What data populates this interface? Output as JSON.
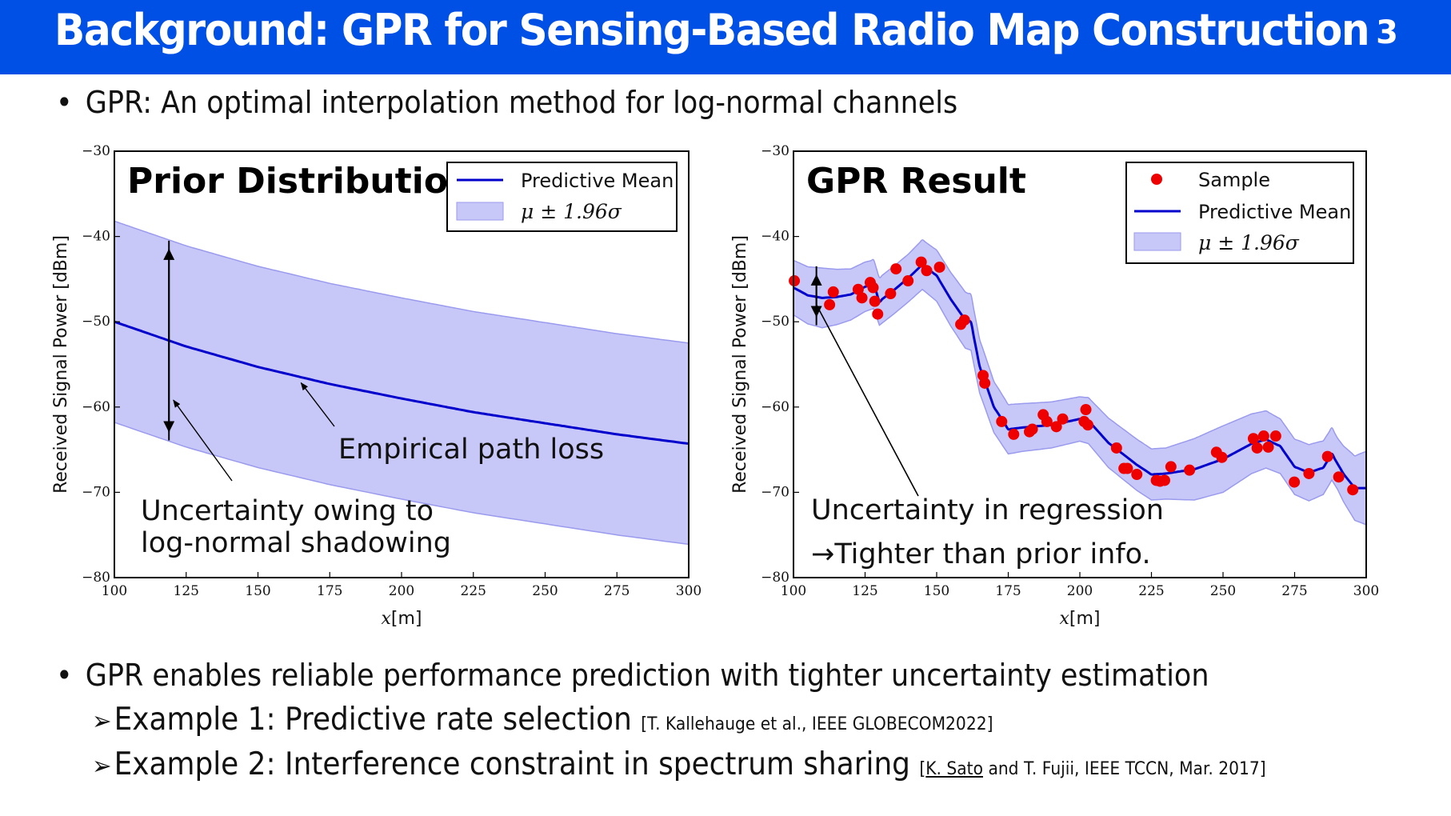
{
  "header": {
    "title": "Background: GPR for Sensing-Based Radio Map Construction",
    "page_number": "3",
    "background_color": "#0050E6"
  },
  "bullets": {
    "top": "GPR: An optimal interpolation method for log-normal channels",
    "bottom": "GPR enables reliable performance prediction with tighter uncertainty estimation",
    "bullet_glyph": "•",
    "sub_glyph": "➢",
    "examples": [
      {
        "text": "Example 1: Predictive rate selection",
        "ref_pre": "[T. Kallehauge et al., IEEE GLOBECOM2022]",
        "ref_underlined": "",
        "ref_post": ""
      },
      {
        "text": "Example 2: Interference constraint in spectrum sharing",
        "ref_pre": "[",
        "ref_underlined": "K. Sato",
        "ref_post": " and T. Fujii, IEEE TCCN, Mar. 2017]"
      }
    ]
  },
  "chart_data": [
    {
      "type": "area",
      "title": "Prior Distribution",
      "xlabel": "x[m]",
      "ylabel": "Received Signal Power [dBm]",
      "xlim": [
        100,
        300
      ],
      "ylim": [
        -80,
        -30
      ],
      "xticks": [
        100,
        125,
        150,
        175,
        200,
        225,
        250,
        275,
        300
      ],
      "yticks": [
        -80,
        -70,
        -60,
        -50,
        -40,
        -30
      ],
      "grid": false,
      "legend": {
        "position": "top-right",
        "entries": [
          "Predictive Mean",
          "μ ± 1.96σ"
        ]
      },
      "colors": {
        "mean": "#0000CC",
        "band": "#C8C8F8",
        "band_edge": "#9A9AEE"
      },
      "series": [
        {
          "name": "Predictive Mean",
          "model": "path_loss",
          "x": [
            100,
            125,
            150,
            175,
            200,
            225,
            250,
            275,
            300
          ],
          "y": [
            -50.0,
            -52.9,
            -55.3,
            -57.3,
            -59.0,
            -60.6,
            -61.9,
            -63.2,
            -64.3
          ]
        },
        {
          "name": "μ ± 1.96σ",
          "half_width_db": 11.8
        }
      ],
      "annotations": [
        {
          "text": "Empirical path loss",
          "points_to": [
            165,
            -56.6
          ]
        },
        {
          "text_lines": [
            "Uncertainty owing to",
            "log-normal shadowing"
          ],
          "points_to": [
            120,
            -59.0
          ]
        },
        {
          "type": "double-arrow",
          "x": 119,
          "from": -40.4,
          "to": -64.0
        }
      ]
    },
    {
      "type": "scatter",
      "title": "GPR Result",
      "xlabel": "x[m]",
      "ylabel": "Received Signal Power [dBm]",
      "xlim": [
        100,
        300
      ],
      "ylim": [
        -80,
        -30
      ],
      "xticks": [
        100,
        125,
        150,
        175,
        200,
        225,
        250,
        275,
        300
      ],
      "yticks": [
        -80,
        -70,
        -60,
        -50,
        -40,
        -30
      ],
      "grid": false,
      "legend": {
        "position": "top-right",
        "entries": [
          "Sample",
          "Predictive Mean",
          "μ ± 1.96σ"
        ]
      },
      "colors": {
        "sample": "#EE0000",
        "mean": "#0000CC",
        "band": "#C8C8F8",
        "band_edge": "#9A9AEE"
      },
      "samples": {
        "x": [
          100.3,
          112.6,
          113.9,
          122.6,
          123.9,
          126.8,
          127.8,
          128.4,
          129.4,
          133.9,
          135.8,
          140.0,
          144.6,
          146.5,
          151.0,
          158.4,
          159.7,
          166.2,
          166.8,
          172.7,
          176.9,
          182.4,
          183.4,
          187.2,
          188.5,
          191.8,
          194.0,
          201.5,
          202.1,
          202.8,
          212.8,
          215.4,
          216.6,
          219.9,
          226.7,
          228.0,
          229.6,
          231.8,
          238.3,
          247.7,
          249.6,
          260.6,
          261.9,
          264.2,
          265.8,
          268.4,
          274.9,
          280.0,
          286.5,
          290.4,
          295.3
        ],
        "y": [
          -45.2,
          -48.0,
          -46.5,
          -46.2,
          -47.2,
          -45.4,
          -46.0,
          -47.6,
          -49.1,
          -46.7,
          -43.8,
          -45.2,
          -43.0,
          -44.0,
          -43.6,
          -50.3,
          -49.8,
          -56.3,
          -57.2,
          -61.7,
          -63.2,
          -62.9,
          -62.6,
          -60.9,
          -61.7,
          -62.3,
          -61.4,
          -61.7,
          -60.3,
          -62.1,
          -64.8,
          -67.2,
          -67.2,
          -67.9,
          -68.6,
          -68.7,
          -68.6,
          -67.0,
          -67.4,
          -65.3,
          -65.9,
          -63.7,
          -64.8,
          -63.4,
          -64.7,
          -63.4,
          -68.8,
          -67.8,
          -65.8,
          -68.2,
          -69.7
        ]
      },
      "mean": {
        "x": [
          100,
          105,
          110,
          115,
          120,
          125,
          128,
          130,
          135,
          140,
          145,
          150,
          155,
          160,
          162,
          165,
          170,
          175,
          180,
          190,
          200,
          203,
          210,
          220,
          225,
          230,
          240,
          250,
          255,
          260,
          265,
          270,
          275,
          280,
          285,
          288,
          292,
          296,
          300
        ],
        "y": [
          -46.0,
          -46.9,
          -47.2,
          -47.1,
          -46.8,
          -45.9,
          -45.6,
          -47.6,
          -46.3,
          -44.9,
          -43.3,
          -44.6,
          -47.4,
          -49.8,
          -50.1,
          -55.2,
          -60.0,
          -62.6,
          -62.4,
          -62.1,
          -61.4,
          -61.6,
          -64.2,
          -66.8,
          -67.9,
          -67.8,
          -67.3,
          -66.1,
          -65.2,
          -64.3,
          -63.8,
          -64.6,
          -67.0,
          -67.7,
          -67.1,
          -65.5,
          -67.8,
          -69.5,
          -69.5
        ]
      },
      "band_half_width_db": {
        "x": [
          100,
          110,
          120,
          130,
          140,
          150,
          160,
          170,
          180,
          190,
          200,
          210,
          220,
          230,
          240,
          250,
          260,
          270,
          280,
          290,
          300
        ],
        "w": [
          3.2,
          3.5,
          3.0,
          2.8,
          2.8,
          3.0,
          3.3,
          3.0,
          2.8,
          2.7,
          2.6,
          2.9,
          3.0,
          3.0,
          3.6,
          3.9,
          3.5,
          3.2,
          3.3,
          3.0,
          4.3
        ]
      },
      "annotations": [
        {
          "text_lines": [
            "Uncertainty in regression",
            "→Tighter than prior info."
          ],
          "points_to": [
            108,
            -48.0
          ]
        },
        {
          "type": "double-arrow",
          "x": 108,
          "from": -43.4,
          "to": -50.5
        }
      ]
    }
  ]
}
